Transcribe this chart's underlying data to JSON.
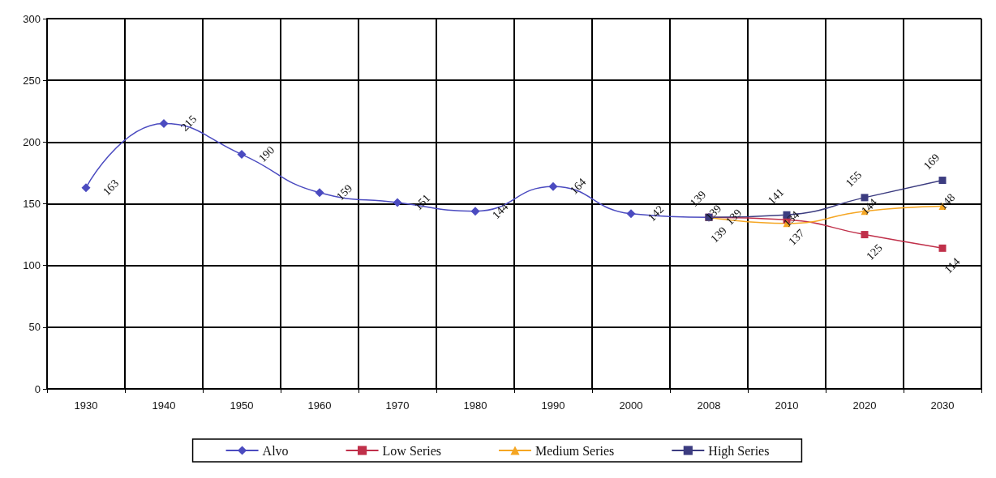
{
  "chart_data": {
    "type": "line",
    "categories": [
      "1930",
      "1940",
      "1950",
      "1960",
      "1970",
      "1980",
      "1990",
      "2000",
      "2008",
      "2010",
      "2020",
      "2030"
    ],
    "series": [
      {
        "name": "Alvo",
        "color": "#4b4bc0",
        "marker": "diamond",
        "values": [
          163,
          215,
          190,
          159,
          151,
          144,
          164,
          142,
          139,
          null,
          null,
          null
        ]
      },
      {
        "name": "Low Series",
        "color": "#c0304a",
        "marker": "square",
        "values": [
          null,
          null,
          null,
          null,
          null,
          null,
          null,
          null,
          139,
          137,
          125,
          114
        ]
      },
      {
        "name": "Medium Series",
        "color": "#f5a623",
        "marker": "triangle",
        "values": [
          null,
          null,
          null,
          null,
          null,
          null,
          null,
          null,
          139,
          134,
          144,
          148
        ]
      },
      {
        "name": "High Series",
        "color": "#3c3c80",
        "marker": "square",
        "values": [
          null,
          null,
          null,
          null,
          null,
          null,
          null,
          null,
          139,
          141,
          155,
          169
        ]
      }
    ],
    "ylim": [
      0,
      300
    ],
    "yticks": [
      0,
      50,
      100,
      150,
      200,
      250,
      300
    ],
    "grid": true,
    "legend": "bottom",
    "data_labels": true
  }
}
